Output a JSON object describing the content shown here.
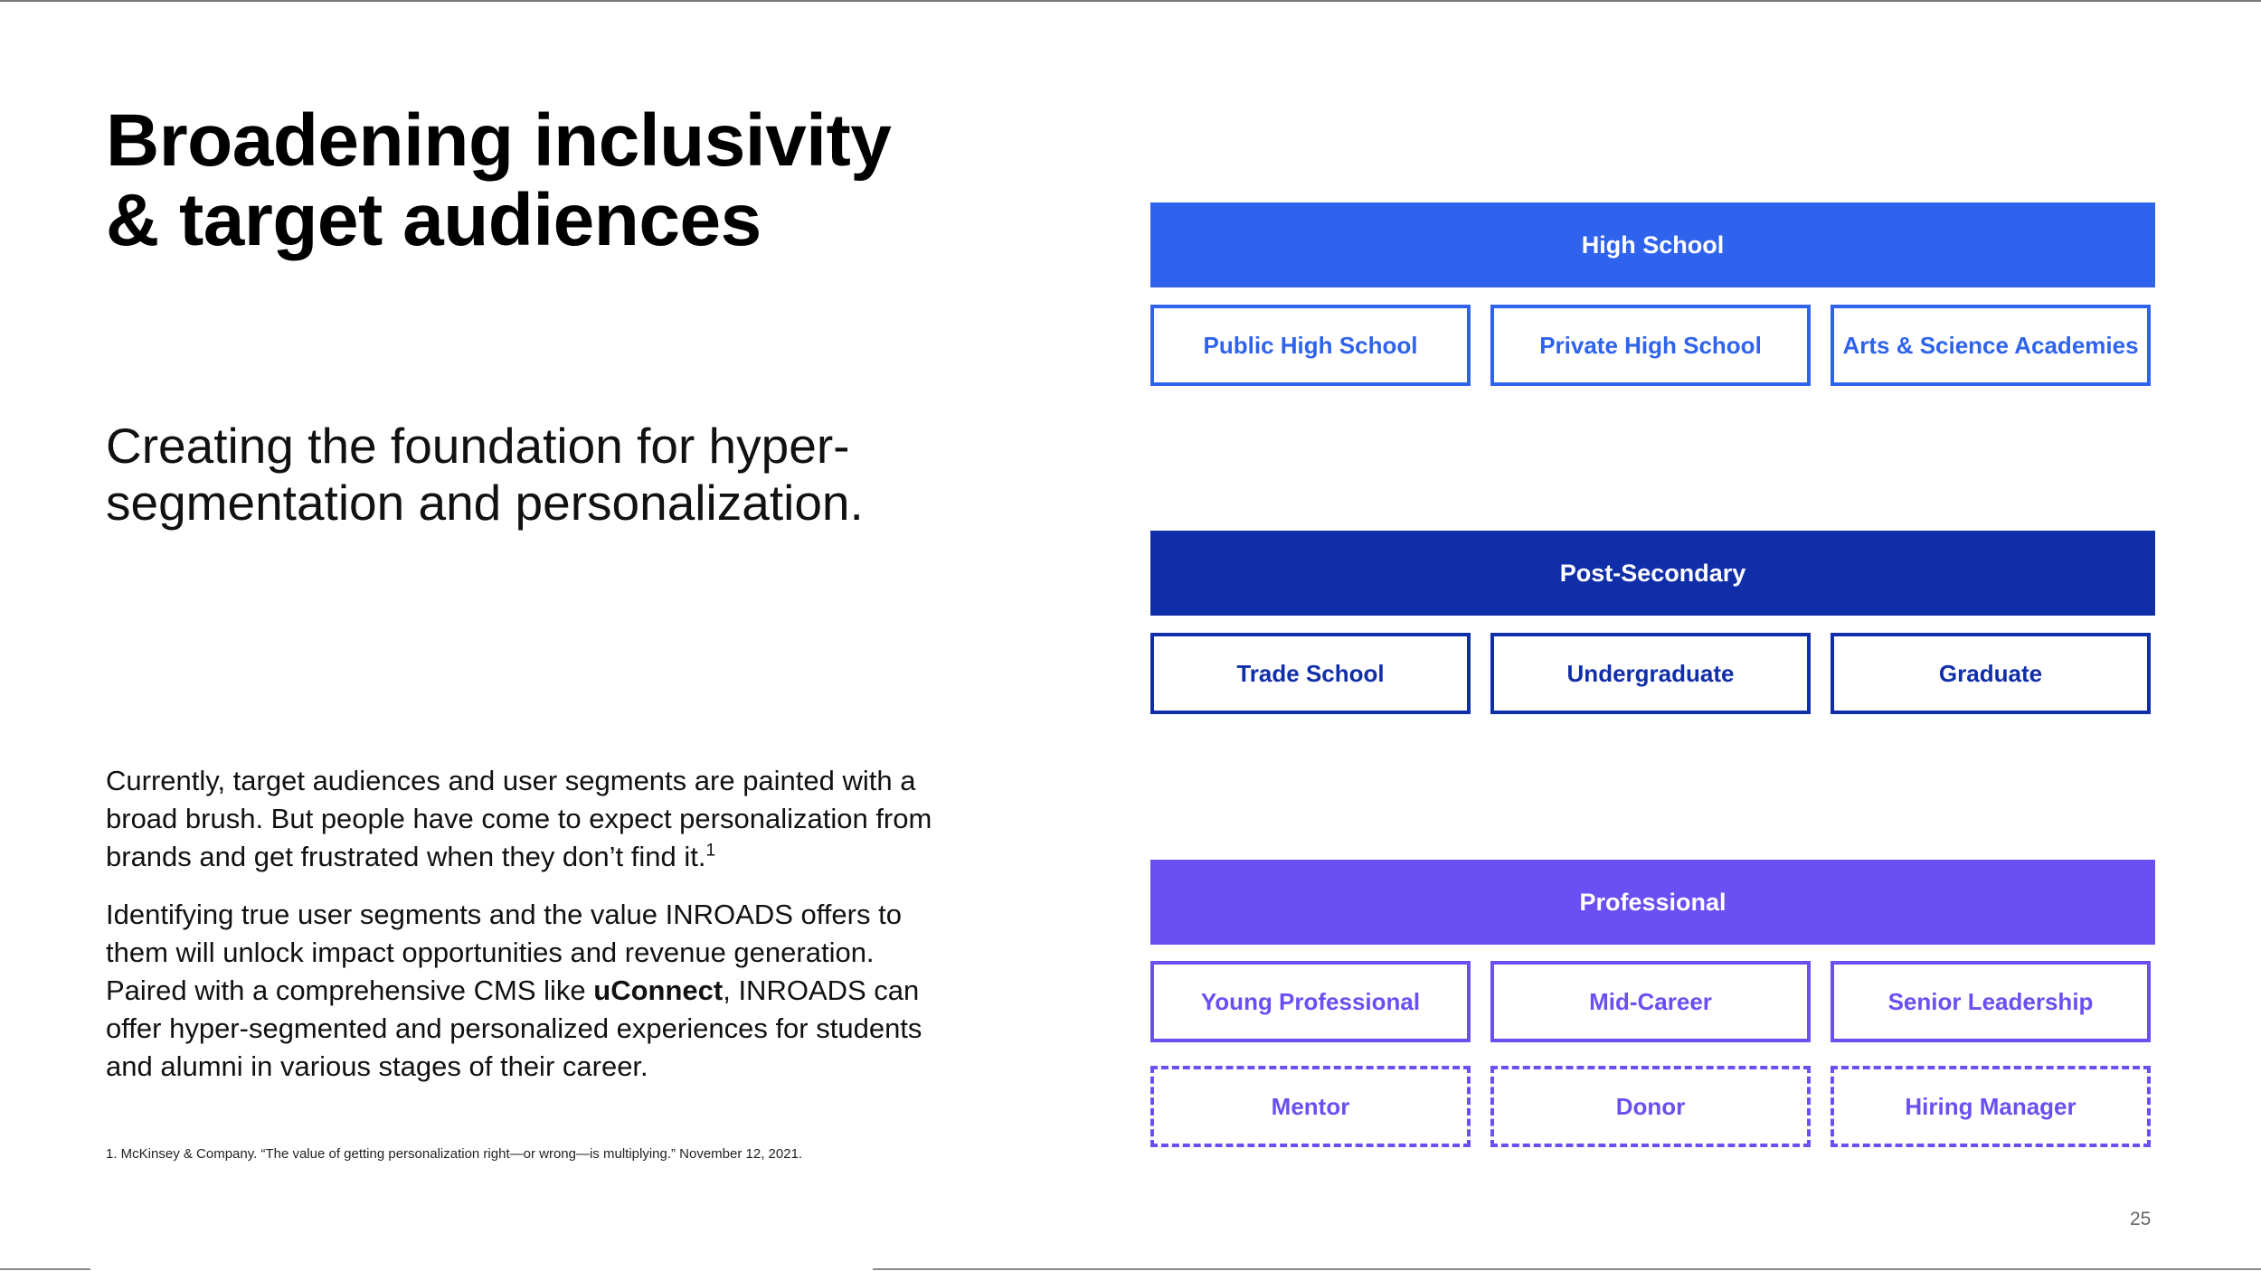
{
  "title": {
    "line1": "Broadening inclusivity",
    "line2": "& target audiences"
  },
  "subtitle": "Creating the foundation for hyper-segmentation and personalization.",
  "body": {
    "para1": "Currently, target audiences and user segments are painted with a broad brush. But people have come to expect personalization from brands and get frustrated when they don’t find it.",
    "para1_sup": "1",
    "para2_before": "Identifying true user segments and the value INROADS offers to them will unlock impact opportunities and revenue generation. Paired with a comprehensive CMS like ",
    "para2_bold": "uConnect",
    "para2_after": ", INROADS can offer hyper-segmented and personalized experiences for students and alumni in various stages of their career."
  },
  "footnote": "1. McKinsey & Company. “The value of getting personalization right—or wrong—is multiplying.” November 12, 2021.",
  "page_number": "25",
  "tiers": [
    {
      "name": "High School",
      "color": "#2f63ee",
      "segments": [
        "Public High School",
        "Private High School",
        "Arts & Science Academies"
      ]
    },
    {
      "name": "Post-Secondary",
      "color": "#112ea9",
      "segments": [
        "Trade School",
        "Undergraduate",
        "Graduate"
      ]
    },
    {
      "name": "Professional",
      "color": "#6a4ff2",
      "segments": [
        "Young Professional",
        "Mid-Career",
        "Senior Leadership"
      ],
      "extra_segments": [
        "Mentor",
        "Donor",
        "Hiring Manager"
      ]
    }
  ]
}
